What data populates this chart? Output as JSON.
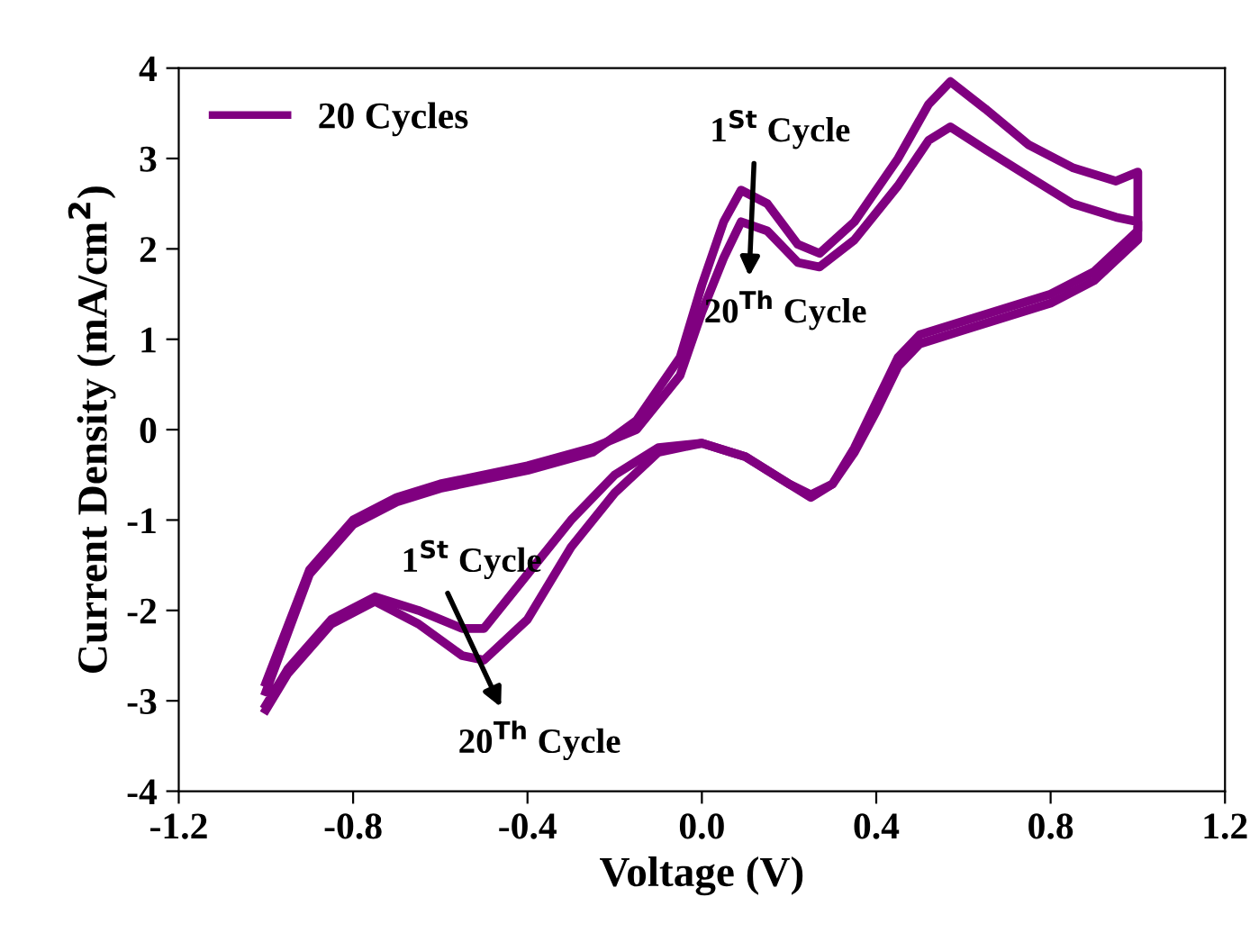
{
  "chart_data": {
    "type": "line",
    "xlabel": "Voltage (V)",
    "ylabel": "Current Density (mA/cm$^{2}$)",
    "xlim": [
      -1.2,
      1.2
    ],
    "xticks": [
      -1.2,
      -0.8,
      -0.4,
      {
        "value": 0,
        "label": "0.0"
      },
      0.4,
      0.8,
      1.2
    ],
    "ylim": [
      -4,
      4
    ],
    "yticks": [
      -4,
      -3,
      -2,
      -1,
      0,
      1,
      2,
      3,
      4
    ],
    "grid": false,
    "legend": "top left",
    "marker": "none",
    "line_style": "solid",
    "series": [
      {
        "name": "20 Cycles",
        "color": "#800080",
        "x": [
          -1.0,
          -0.9,
          -0.8,
          -0.7,
          -0.6,
          -0.4,
          -0.25,
          -0.15,
          -0.05,
          0.0,
          0.05,
          0.09,
          0.15,
          0.22,
          0.27,
          0.35,
          0.45,
          0.52,
          0.57,
          0.65,
          0.75,
          0.85,
          0.95,
          1.0,
          1.0,
          0.9,
          0.8,
          0.6,
          0.5,
          0.45,
          0.4,
          0.35,
          0.3,
          0.25,
          0.2,
          0.1,
          0.0,
          -0.1,
          -0.2,
          -0.3,
          -0.4,
          -0.5,
          -0.55,
          -0.65,
          -0.75,
          -0.85,
          -0.95,
          -1.0
        ],
        "values": [
          -2.9,
          -1.6,
          -1.05,
          -0.8,
          -0.65,
          -0.45,
          -0.25,
          0.1,
          0.8,
          1.6,
          2.3,
          2.65,
          2.5,
          2.05,
          1.95,
          2.3,
          3.0,
          3.6,
          3.85,
          3.55,
          3.15,
          2.9,
          2.75,
          2.85,
          2.2,
          1.75,
          1.5,
          1.2,
          1.05,
          0.8,
          0.3,
          -0.2,
          -0.6,
          -0.75,
          -0.6,
          -0.3,
          -0.15,
          -0.2,
          -0.5,
          -1.0,
          -1.6,
          -2.2,
          -2.2,
          -2.0,
          -1.85,
          -2.1,
          -2.65,
          -3.05
        ]
      },
      {
        "color": "#800080",
        "x": [
          -1.0,
          -0.9,
          -0.8,
          -0.7,
          -0.6,
          -0.4,
          -0.25,
          -0.15,
          -0.05,
          0.0,
          0.05,
          0.09,
          0.15,
          0.22,
          0.27,
          0.35,
          0.45,
          0.52,
          0.57,
          0.65,
          0.75,
          0.85,
          0.95,
          1.0,
          1.0,
          0.9,
          0.8,
          0.6,
          0.5,
          0.45,
          0.4,
          0.35,
          0.3,
          0.25,
          0.2,
          0.1,
          0.0,
          -0.1,
          -0.2,
          -0.3,
          -0.4,
          -0.5,
          -0.55,
          -0.65,
          -0.75,
          -0.85,
          -0.95,
          -1.0
        ],
        "values": [
          -2.8,
          -1.55,
          -1.0,
          -0.75,
          -0.6,
          -0.4,
          -0.2,
          0.0,
          0.6,
          1.3,
          1.9,
          2.3,
          2.2,
          1.85,
          1.8,
          2.1,
          2.7,
          3.2,
          3.35,
          3.1,
          2.8,
          2.5,
          2.35,
          2.3,
          2.1,
          1.65,
          1.4,
          1.1,
          0.95,
          0.7,
          0.2,
          -0.25,
          -0.6,
          -0.72,
          -0.6,
          -0.3,
          -0.15,
          -0.25,
          -0.7,
          -1.3,
          -2.1,
          -2.55,
          -2.5,
          -2.15,
          -1.9,
          -2.15,
          -2.7,
          -3.1
        ]
      }
    ],
    "annotations": [
      "1$^{St}$ Cycle",
      "20$^{Th}$ Cycle",
      "1$^{St}$ Cycle",
      "20$^{Th}$ Cycle"
    ]
  }
}
